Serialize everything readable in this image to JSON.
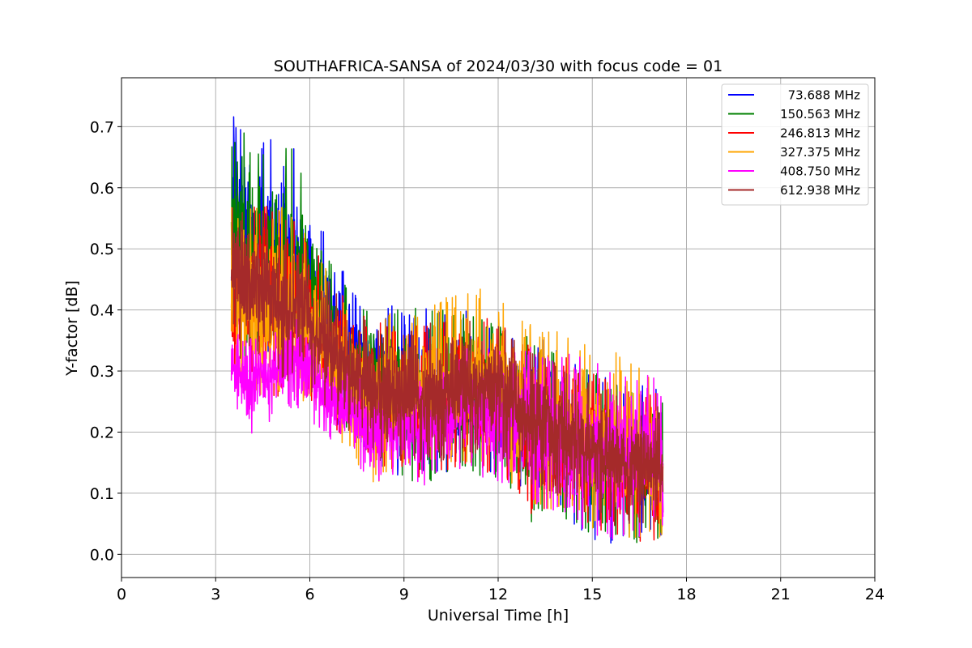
{
  "chart_data": {
    "type": "line",
    "title": "SOUTHAFRICA-SANSA of 2024/03/30 with focus code = 01",
    "xlabel": "Universal Time [h]",
    "ylabel": "Y-factor [dB]",
    "xlim": [
      0,
      24
    ],
    "ylim": [
      -0.038,
      0.78
    ],
    "x_ticks": [
      0,
      3,
      6,
      9,
      12,
      15,
      18,
      21,
      24
    ],
    "x_tick_labels": [
      "0",
      "3",
      "6",
      "9",
      "12",
      "15",
      "18",
      "21",
      "24"
    ],
    "y_ticks": [
      0.0,
      0.1,
      0.2,
      0.3,
      0.4,
      0.5,
      0.6,
      0.7
    ],
    "y_tick_labels": [
      "0.0",
      "0.1",
      "0.2",
      "0.3",
      "0.4",
      "0.5",
      "0.6",
      "0.7"
    ],
    "grid": true,
    "legend_position": "top-right",
    "series": [
      {
        "name": "73.688 MHz",
        "color": "#0000ff",
        "envelope": {
          "x": [
            3.5,
            4.0,
            5.0,
            5.5,
            6.0,
            6.5,
            7.0,
            7.5,
            8.0,
            9.0,
            10.0,
            11.0,
            12.0,
            13.0,
            14.0,
            15.0,
            16.0,
            17.0,
            17.25
          ],
          "high": [
            0.74,
            0.69,
            0.68,
            0.67,
            0.6,
            0.52,
            0.47,
            0.42,
            0.41,
            0.41,
            0.4,
            0.4,
            0.38,
            0.36,
            0.34,
            0.3,
            0.28,
            0.28,
            0.25
          ],
          "low": [
            0.36,
            0.33,
            0.3,
            0.28,
            0.26,
            0.24,
            0.2,
            0.18,
            0.15,
            0.12,
            0.13,
            0.14,
            0.13,
            0.1,
            0.07,
            0.0,
            0.03,
            0.03,
            0.03
          ]
        }
      },
      {
        "name": "150.563 MHz",
        "color": "#008000",
        "envelope": {
          "x": [
            3.5,
            4.0,
            5.0,
            5.5,
            6.0,
            6.5,
            7.0,
            7.5,
            8.0,
            9.0,
            10.0,
            11.0,
            12.0,
            13.0,
            14.0,
            15.0,
            16.0,
            17.0,
            17.25
          ],
          "high": [
            0.74,
            0.68,
            0.66,
            0.67,
            0.58,
            0.51,
            0.46,
            0.42,
            0.41,
            0.41,
            0.4,
            0.4,
            0.38,
            0.36,
            0.34,
            0.3,
            0.28,
            0.27,
            0.25
          ],
          "low": [
            0.35,
            0.32,
            0.29,
            0.28,
            0.25,
            0.23,
            0.2,
            0.17,
            0.14,
            0.12,
            0.12,
            0.13,
            0.12,
            0.05,
            0.06,
            0.03,
            0.01,
            0.02,
            0.03
          ]
        }
      },
      {
        "name": "246.813 MHz",
        "color": "#ff0000",
        "envelope": {
          "x": [
            3.5,
            4.0,
            5.0,
            5.5,
            6.0,
            6.5,
            7.0,
            7.5,
            8.0,
            9.0,
            10.0,
            11.0,
            12.0,
            13.0,
            14.0,
            15.0,
            16.0,
            17.0,
            17.25
          ],
          "high": [
            0.58,
            0.57,
            0.57,
            0.56,
            0.52,
            0.47,
            0.43,
            0.4,
            0.38,
            0.38,
            0.38,
            0.4,
            0.38,
            0.36,
            0.33,
            0.3,
            0.27,
            0.27,
            0.24
          ],
          "low": [
            0.28,
            0.27,
            0.25,
            0.25,
            0.24,
            0.22,
            0.19,
            0.16,
            0.14,
            0.12,
            0.13,
            0.14,
            0.13,
            0.06,
            0.06,
            0.03,
            0.01,
            0.02,
            0.02
          ]
        }
      },
      {
        "name": "327.375 MHz",
        "color": "#ffa500",
        "envelope": {
          "x": [
            3.5,
            4.0,
            5.0,
            5.5,
            6.0,
            6.5,
            7.0,
            7.5,
            8.0,
            9.0,
            10.0,
            11.0,
            12.0,
            13.0,
            14.0,
            15.0,
            16.0,
            17.0,
            17.25
          ],
          "high": [
            0.58,
            0.57,
            0.57,
            0.56,
            0.52,
            0.47,
            0.43,
            0.4,
            0.39,
            0.4,
            0.41,
            0.44,
            0.43,
            0.38,
            0.37,
            0.34,
            0.33,
            0.29,
            0.26
          ],
          "low": [
            0.26,
            0.26,
            0.25,
            0.25,
            0.24,
            0.21,
            0.18,
            0.15,
            0.11,
            0.12,
            0.13,
            0.14,
            0.13,
            0.08,
            0.07,
            0.04,
            0.02,
            0.02,
            0.02
          ]
        }
      },
      {
        "name": "408.750 MHz",
        "color": "#ff00ff",
        "envelope": {
          "x": [
            3.5,
            4.0,
            5.0,
            5.5,
            6.0,
            6.5,
            7.0,
            7.5,
            8.0,
            9.0,
            10.0,
            11.0,
            12.0,
            13.0,
            14.0,
            15.0,
            16.0,
            17.0,
            17.25
          ],
          "high": [
            0.36,
            0.36,
            0.37,
            0.42,
            0.38,
            0.33,
            0.33,
            0.3,
            0.28,
            0.28,
            0.3,
            0.34,
            0.34,
            0.34,
            0.33,
            0.32,
            0.31,
            0.29,
            0.26
          ],
          "low": [
            0.26,
            0.18,
            0.23,
            0.24,
            0.22,
            0.19,
            0.17,
            0.14,
            0.12,
            0.12,
            0.1,
            0.13,
            0.12,
            0.08,
            0.07,
            0.03,
            0.02,
            0.02,
            0.01
          ]
        }
      },
      {
        "name": "612.938 MHz",
        "color": "#a52a2a",
        "envelope": {
          "x": [
            3.5,
            4.0,
            5.0,
            5.5,
            6.0,
            6.5,
            7.0,
            7.5,
            8.0,
            9.0,
            10.0,
            11.0,
            12.0,
            13.0,
            14.0,
            15.0,
            16.0,
            17.0,
            17.25
          ],
          "high": [
            0.58,
            0.57,
            0.56,
            0.55,
            0.5,
            0.46,
            0.42,
            0.4,
            0.37,
            0.37,
            0.38,
            0.4,
            0.38,
            0.34,
            0.31,
            0.28,
            0.26,
            0.25,
            0.23
          ],
          "low": [
            0.32,
            0.32,
            0.29,
            0.28,
            0.26,
            0.24,
            0.21,
            0.19,
            0.16,
            0.15,
            0.15,
            0.16,
            0.15,
            0.11,
            0.09,
            0.06,
            0.04,
            0.05,
            0.04
          ]
        }
      }
    ]
  }
}
